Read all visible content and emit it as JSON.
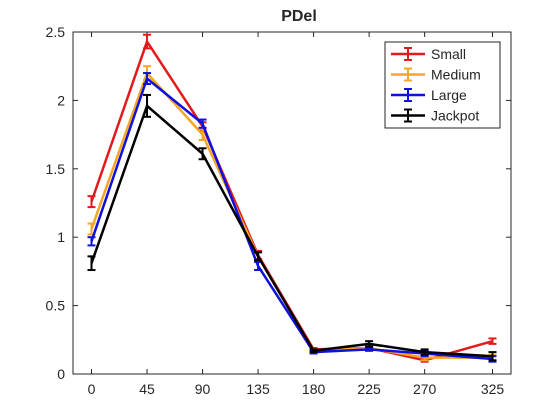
{
  "chart_data": {
    "type": "line",
    "title": "PDel",
    "xlabel": "",
    "ylabel": "",
    "x": [
      0,
      45,
      90,
      135,
      180,
      225,
      270,
      325
    ],
    "xticks": [
      "0",
      "45",
      "90",
      "135",
      "180",
      "225",
      "270",
      "325"
    ],
    "xlim": [
      -15,
      340
    ],
    "ylim": [
      0,
      2.5
    ],
    "yticks": [
      "0",
      "0.5",
      "1",
      "1.5",
      "2",
      "2.5"
    ],
    "ytick_values": [
      0,
      0.5,
      1,
      1.5,
      2,
      2.5
    ],
    "grid": false,
    "legend_position": "top-right",
    "series": [
      {
        "name": "Small",
        "color": "#e31a1c",
        "values": [
          1.26,
          2.43,
          1.81,
          0.87,
          0.18,
          0.19,
          0.1,
          0.24
        ],
        "errors": [
          0.04,
          0.05,
          0.03,
          0.03,
          0.01,
          0.02,
          0.01,
          0.02
        ]
      },
      {
        "name": "Medium",
        "color": "#f5a623",
        "values": [
          1.06,
          2.2,
          1.75,
          0.86,
          0.17,
          0.19,
          0.12,
          0.12
        ],
        "errors": [
          0.04,
          0.05,
          0.04,
          0.03,
          0.01,
          0.02,
          0.02,
          0.02
        ]
      },
      {
        "name": "Large",
        "color": "#1010e0",
        "values": [
          0.97,
          2.16,
          1.83,
          0.79,
          0.16,
          0.18,
          0.15,
          0.11
        ],
        "errors": [
          0.03,
          0.04,
          0.03,
          0.03,
          0.01,
          0.01,
          0.02,
          0.02
        ]
      },
      {
        "name": "Jackpot",
        "color": "#000000",
        "values": [
          0.81,
          1.96,
          1.61,
          0.86,
          0.17,
          0.22,
          0.16,
          0.13
        ],
        "errors": [
          0.05,
          0.08,
          0.04,
          0.03,
          0.01,
          0.02,
          0.02,
          0.03
        ]
      }
    ]
  }
}
